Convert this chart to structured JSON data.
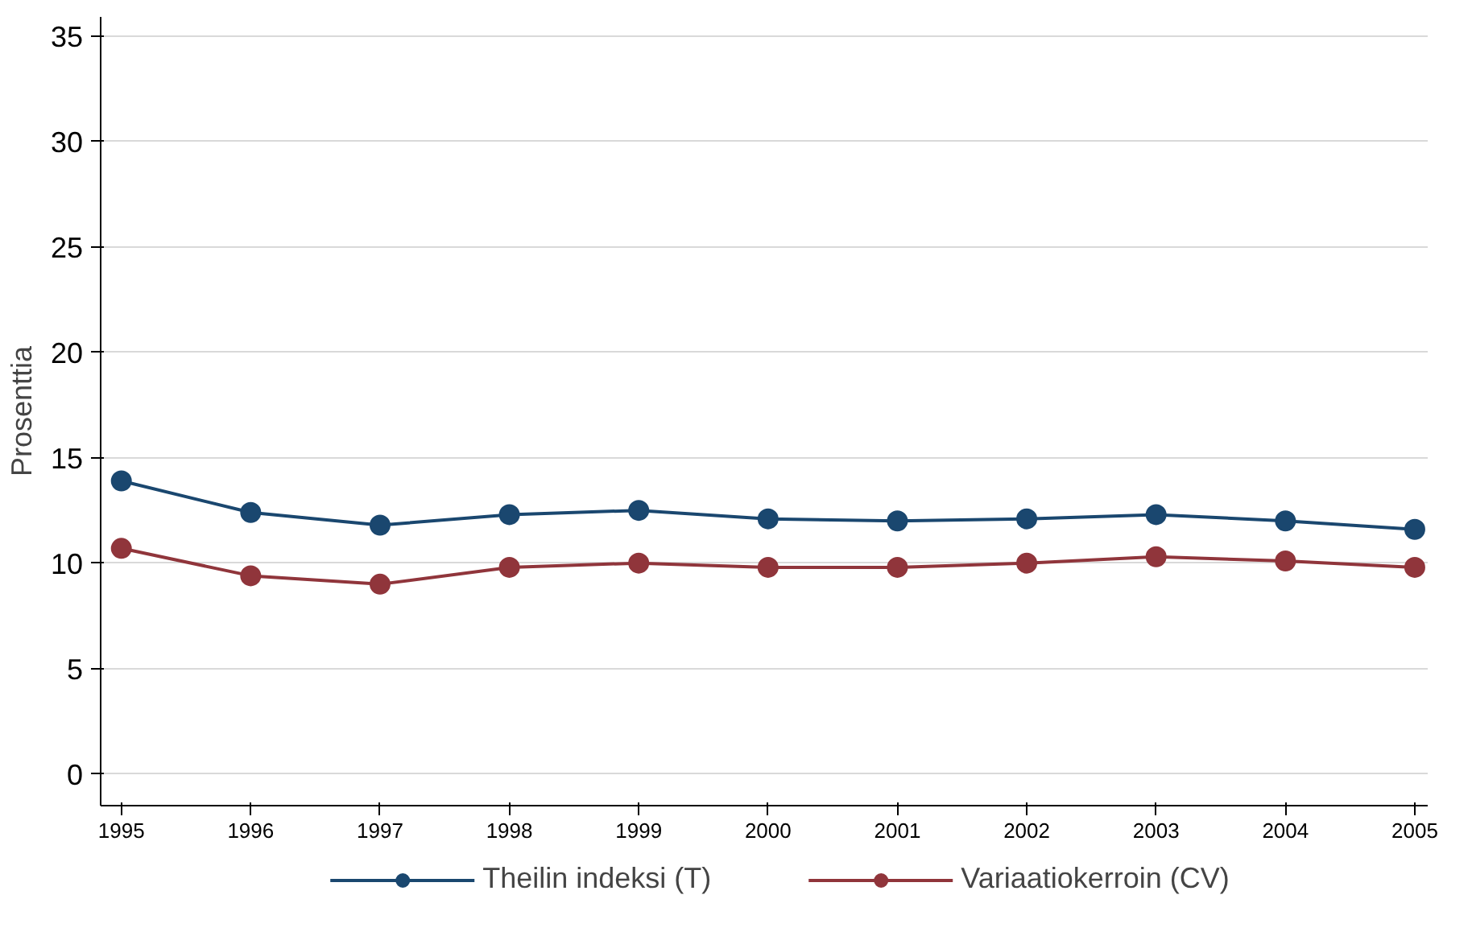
{
  "chart_data": {
    "type": "line",
    "ylabel": "Prosenttia",
    "x": [
      1995,
      1996,
      1997,
      1998,
      1999,
      2000,
      2001,
      2002,
      2003,
      2004,
      2005
    ],
    "xlim": [
      1994.84,
      2005.1
    ],
    "xticks": [
      1995,
      1996,
      1997,
      1998,
      1999,
      2000,
      2001,
      2002,
      2003,
      2004,
      2005
    ],
    "ylim": [
      -1.5,
      35.9
    ],
    "yticks": [
      0,
      5,
      10,
      15,
      20,
      25,
      30,
      35
    ],
    "grid": "y",
    "legend": "bottom",
    "marker": "circle",
    "line_style": "solid",
    "series": [
      {
        "name": "Theilin indeksi (T)",
        "color": "#1a476f",
        "values": [
          13.9,
          12.4,
          11.8,
          12.3,
          12.5,
          12.1,
          12.0,
          12.1,
          12.3,
          12.0,
          11.6
        ]
      },
      {
        "name": "Variaatiokerroin (CV)",
        "color": "#90353b",
        "values": [
          10.7,
          9.4,
          9.0,
          9.8,
          10.0,
          9.8,
          9.8,
          10.0,
          10.3,
          10.1,
          9.8
        ]
      }
    ]
  }
}
